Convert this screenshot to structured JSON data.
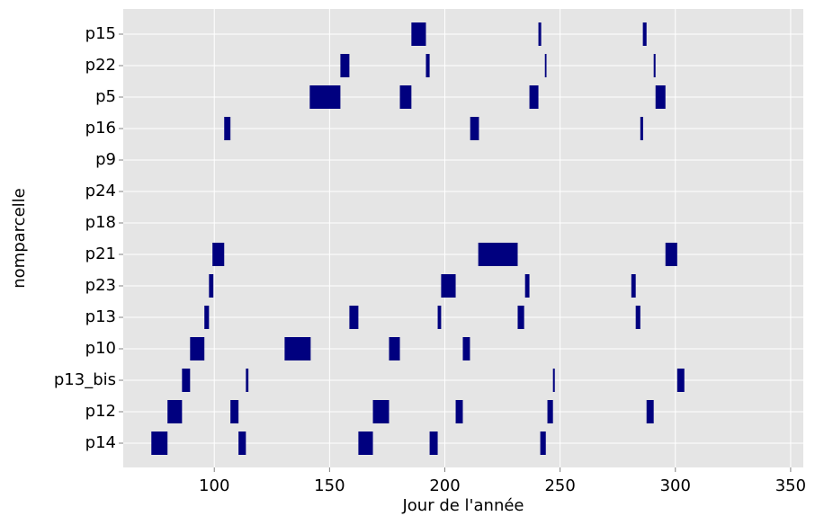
{
  "chart_data": {
    "type": "timeline",
    "x_label": "Jour de l'année",
    "y_label": "nomparcelle",
    "color": "#00007f",
    "categories": [
      "p15",
      "p22",
      "p5",
      "p16",
      "p9",
      "p24",
      "p18",
      "p21",
      "p23",
      "p13",
      "p10",
      "p13_bis",
      "p12",
      "p14"
    ],
    "intervals": [
      [
        [
          185.5,
          191.8
        ],
        [
          240.6,
          241.8
        ],
        [
          285.9,
          287.5
        ]
      ],
      [
        [
          154.7,
          158.6
        ],
        [
          191.8,
          193.4
        ],
        [
          243.4,
          244.1
        ],
        [
          290.6,
          291.4
        ]
      ],
      [
        [
          141.4,
          154.7
        ],
        [
          180.5,
          185.5
        ],
        [
          236.7,
          240.6
        ],
        [
          291.4,
          295.7
        ]
      ],
      [
        [
          104.3,
          107
        ],
        [
          211,
          214.8
        ],
        [
          284.8,
          286
        ]
      ],
      [],
      [],
      [],
      [
        [
          99.2,
          104.3
        ],
        [
          214.5,
          231.6
        ],
        [
          295.7,
          300.8
        ]
      ],
      [
        [
          97.7,
          99.6
        ],
        [
          198.4,
          204.7
        ],
        [
          234.8,
          236.7
        ],
        [
          280.9,
          282.8
        ]
      ],
      [
        [
          95.7,
          97.7
        ],
        [
          158.6,
          162.5
        ],
        [
          196.9,
          198.4
        ],
        [
          231.6,
          234.4
        ],
        [
          282.8,
          284.8
        ]
      ],
      [
        [
          89.5,
          95.7
        ],
        [
          130.5,
          141.8
        ],
        [
          175.8,
          180.5
        ],
        [
          207.8,
          210.9
        ]
      ],
      [
        [
          86,
          89.5
        ],
        [
          113.7,
          114.8
        ],
        [
          246.9,
          247.7
        ],
        [
          300.8,
          303.9
        ]
      ],
      [
        [
          79.7,
          86
        ],
        [
          107,
          110.5
        ],
        [
          168.8,
          175.8
        ],
        [
          204.7,
          207.8
        ],
        [
          244.5,
          246.9
        ],
        [
          287.5,
          290.6
        ]
      ],
      [
        [
          72.7,
          79.7
        ],
        [
          110.5,
          113.7
        ],
        [
          162.5,
          168.8
        ],
        [
          193.4,
          196.9
        ],
        [
          241.4,
          243.8
        ]
      ]
    ],
    "xlim": [
      60.5,
      355.5
    ],
    "xticks": [
      100,
      150,
      200,
      250,
      300,
      350
    ],
    "grid": true
  }
}
